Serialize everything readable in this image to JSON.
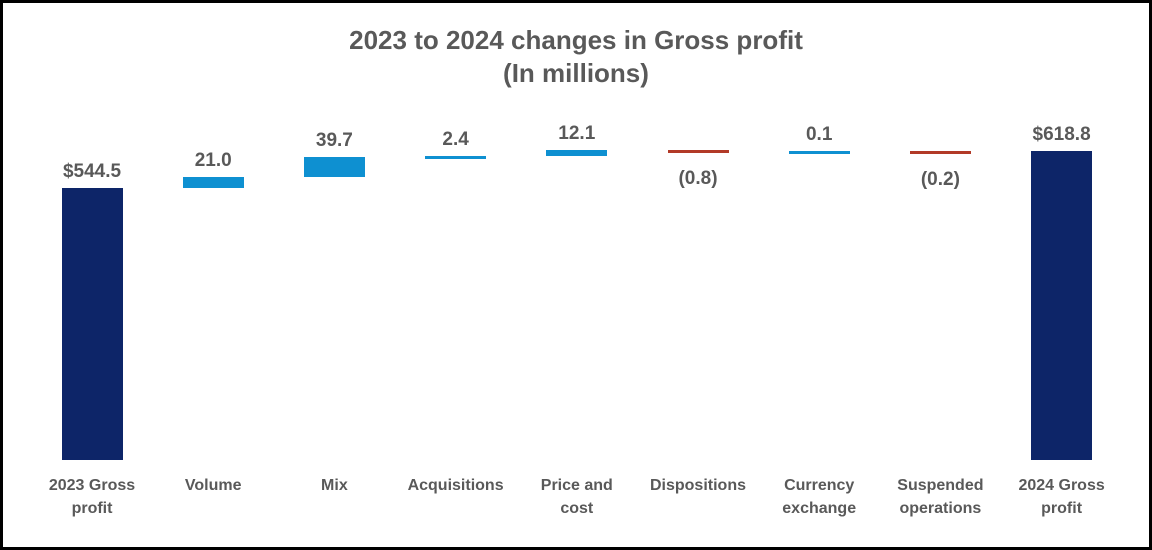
{
  "title": {
    "line1": "2023 to 2024 changes in Gross profit",
    "line2": "(In millions)"
  },
  "colors": {
    "total_bar": "#0d2568",
    "increase_bar": "#0e90d1",
    "decrease_bar": "#b23a28",
    "label_text": "#595959",
    "frame_border": "#000000",
    "background": "#ffffff"
  },
  "chart_data": {
    "type": "bar",
    "subtype": "waterfall",
    "title": "2023 to 2024 changes in Gross profit",
    "subtitle": "(In millions)",
    "unit_prefix_totals": "$",
    "grid": false,
    "axes_visible": false,
    "legend": false,
    "ylim": [
      0,
      650
    ],
    "points": [
      {
        "category": "2023 Gross\nprofit",
        "label": "$544.5",
        "value": 544.5,
        "kind": "total"
      },
      {
        "category": "Volume",
        "label": "21.0",
        "value": 21.0,
        "kind": "increase"
      },
      {
        "category": "Mix",
        "label": "39.7",
        "value": 39.7,
        "kind": "increase"
      },
      {
        "category": "Acquisitions",
        "label": "2.4",
        "value": 2.4,
        "kind": "increase"
      },
      {
        "category": "Price and\ncost",
        "label": "12.1",
        "value": 12.1,
        "kind": "increase"
      },
      {
        "category": "Dispositions",
        "label": "(0.8)",
        "value": -0.8,
        "kind": "decrease"
      },
      {
        "category": "Currency\nexchange",
        "label": "0.1",
        "value": 0.1,
        "kind": "increase"
      },
      {
        "category": "Suspended\noperations",
        "label": "(0.2)",
        "value": -0.2,
        "kind": "decrease"
      },
      {
        "category": "2024 Gross\nprofit",
        "label": "$618.8",
        "value": 618.8,
        "kind": "total"
      }
    ]
  }
}
